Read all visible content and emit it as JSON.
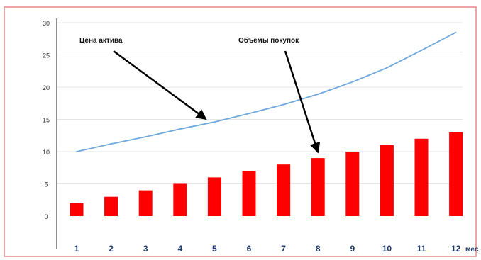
{
  "chart_data": {
    "type": "bar",
    "categories": [
      "1",
      "2",
      "3",
      "4",
      "5",
      "6",
      "7",
      "8",
      "9",
      "10",
      "11",
      "12"
    ],
    "x_axis_unit": "мес",
    "ylim": [
      0,
      30
    ],
    "yticks": [
      0,
      5,
      10,
      15,
      20,
      25,
      30
    ],
    "yticks_labels": [
      "0",
      "5",
      "10",
      "15",
      "20",
      "25",
      "30"
    ],
    "series": [
      {
        "name": "Объемы покупок",
        "type": "bar",
        "color": "#ff0000",
        "values": [
          2,
          3,
          4,
          5,
          6,
          7,
          8,
          9,
          10,
          11,
          12,
          13
        ]
      },
      {
        "name": "Цена актива",
        "type": "line",
        "color": "#6fa8dc",
        "values": [
          10,
          11.2,
          12.3,
          13.5,
          14.6,
          15.9,
          17.3,
          18.9,
          20.8,
          23.0,
          25.7,
          28.5
        ]
      }
    ],
    "annotations": [
      {
        "text": "Цена актива",
        "series": "Цена актива",
        "points_to_index": 4
      },
      {
        "text": "Объемы покупок",
        "series": "Объемы покупок",
        "points_to_index": 7
      }
    ],
    "grid": true
  },
  "colors": {
    "frame": "#e8878c",
    "axis": "#222222",
    "grid": "#e5e5e5",
    "arrow": "#000000"
  }
}
